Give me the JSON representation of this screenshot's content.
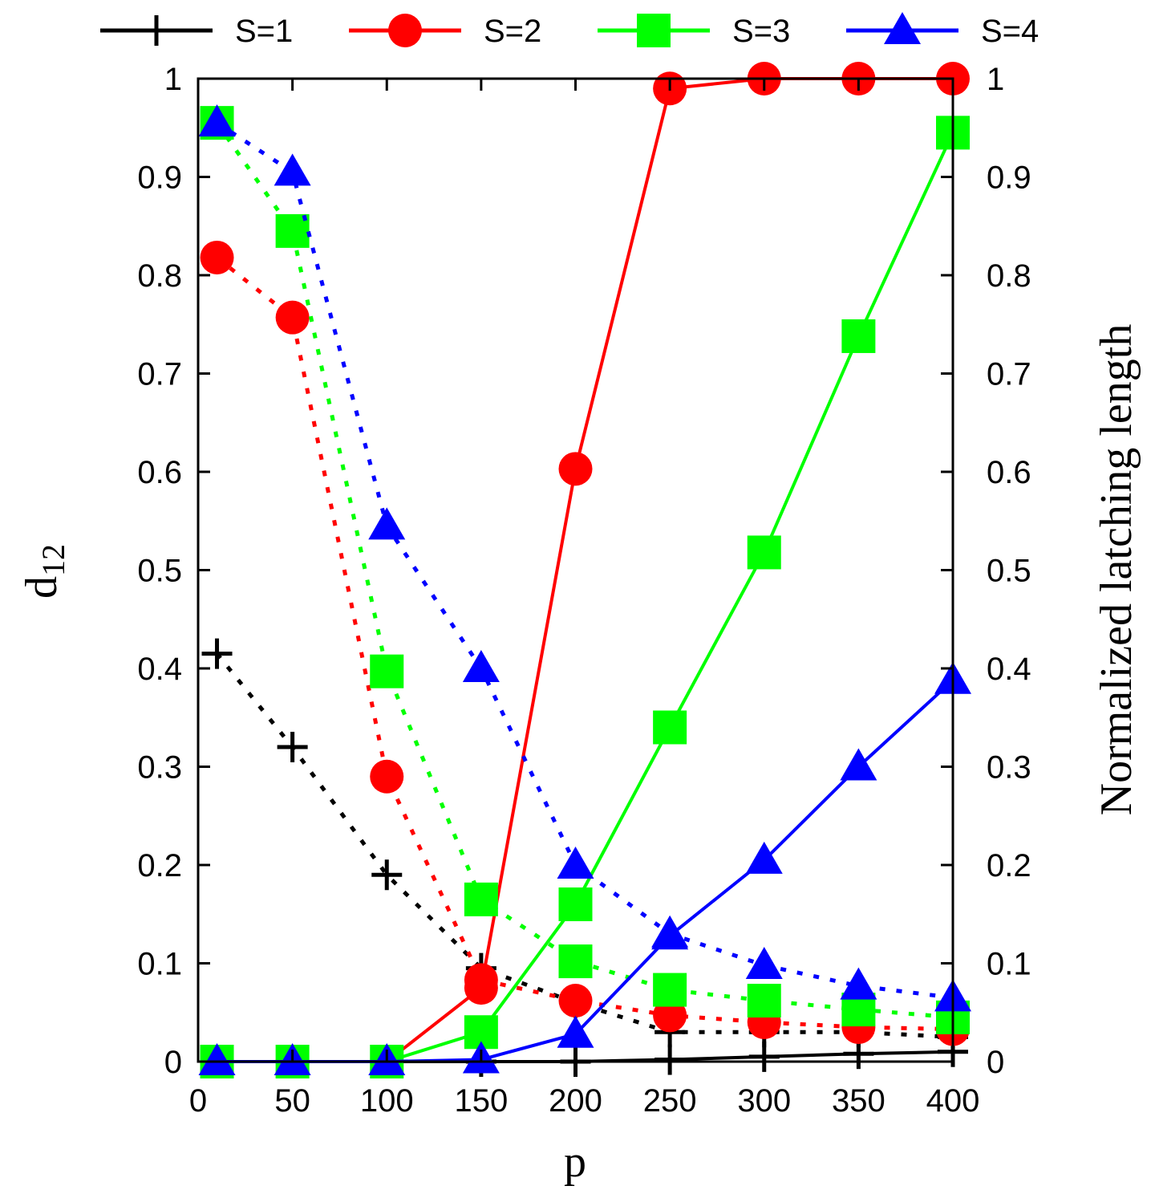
{
  "chart_data": {
    "type": "line",
    "xlabel": "p",
    "ylabel": "d",
    "ylabel_subscript": "12",
    "y2label": "Normalized latching length",
    "xlim": [
      0,
      400
    ],
    "ylim": [
      0,
      1
    ],
    "y2lim": [
      0,
      1
    ],
    "xticks": [
      "0",
      "50",
      "100",
      "150",
      "200",
      "250",
      "300",
      "350",
      "400"
    ],
    "yticks": [
      "0",
      "0.1",
      "0.2",
      "0.3",
      "0.4",
      "0.5",
      "0.6",
      "0.7",
      "0.8",
      "0.9",
      "1"
    ],
    "y2ticks": [
      "0",
      "0.1",
      "0.2",
      "0.3",
      "0.4",
      "0.5",
      "0.6",
      "0.7",
      "0.8",
      "0.9",
      "1"
    ],
    "grid": false,
    "legend_position": "top",
    "x": [
      10,
      50,
      100,
      150,
      200,
      250,
      300,
      350,
      400
    ],
    "series": [
      {
        "name": "S=1",
        "color": "#000000",
        "marker": "plus",
        "d12": [
          0.415,
          0.32,
          0.19,
          0.095,
          0.06,
          0.03,
          0.03,
          0.03,
          0.025
        ],
        "latching": [
          0,
          0,
          0,
          0,
          0,
          0.002,
          0.005,
          0.008,
          0.01
        ]
      },
      {
        "name": "S=2",
        "color": "#ff0000",
        "marker": "circle",
        "d12": [
          0.818,
          0.757,
          0.29,
          0.083,
          0.062,
          0.047,
          0.04,
          0.035,
          0.033
        ],
        "latching": [
          0,
          0,
          0,
          0.075,
          0.603,
          0.99,
          1.0,
          1.0,
          1.0
        ]
      },
      {
        "name": "S=3",
        "color": "#00ff00",
        "marker": "square",
        "d12": [
          0.955,
          0.845,
          0.397,
          0.165,
          0.102,
          0.073,
          0.062,
          0.053,
          0.045
        ],
        "latching": [
          0,
          0,
          0,
          0.03,
          0.16,
          0.34,
          0.518,
          0.738,
          0.945
        ]
      },
      {
        "name": "S=4",
        "color": "#0000ff",
        "marker": "triangle",
        "d12": [
          0.955,
          0.905,
          0.545,
          0.4,
          0.2,
          0.13,
          0.098,
          0.077,
          0.065
        ],
        "latching": [
          0,
          0,
          0,
          0.002,
          0.028,
          0.128,
          0.205,
          0.3,
          0.388
        ]
      }
    ]
  }
}
